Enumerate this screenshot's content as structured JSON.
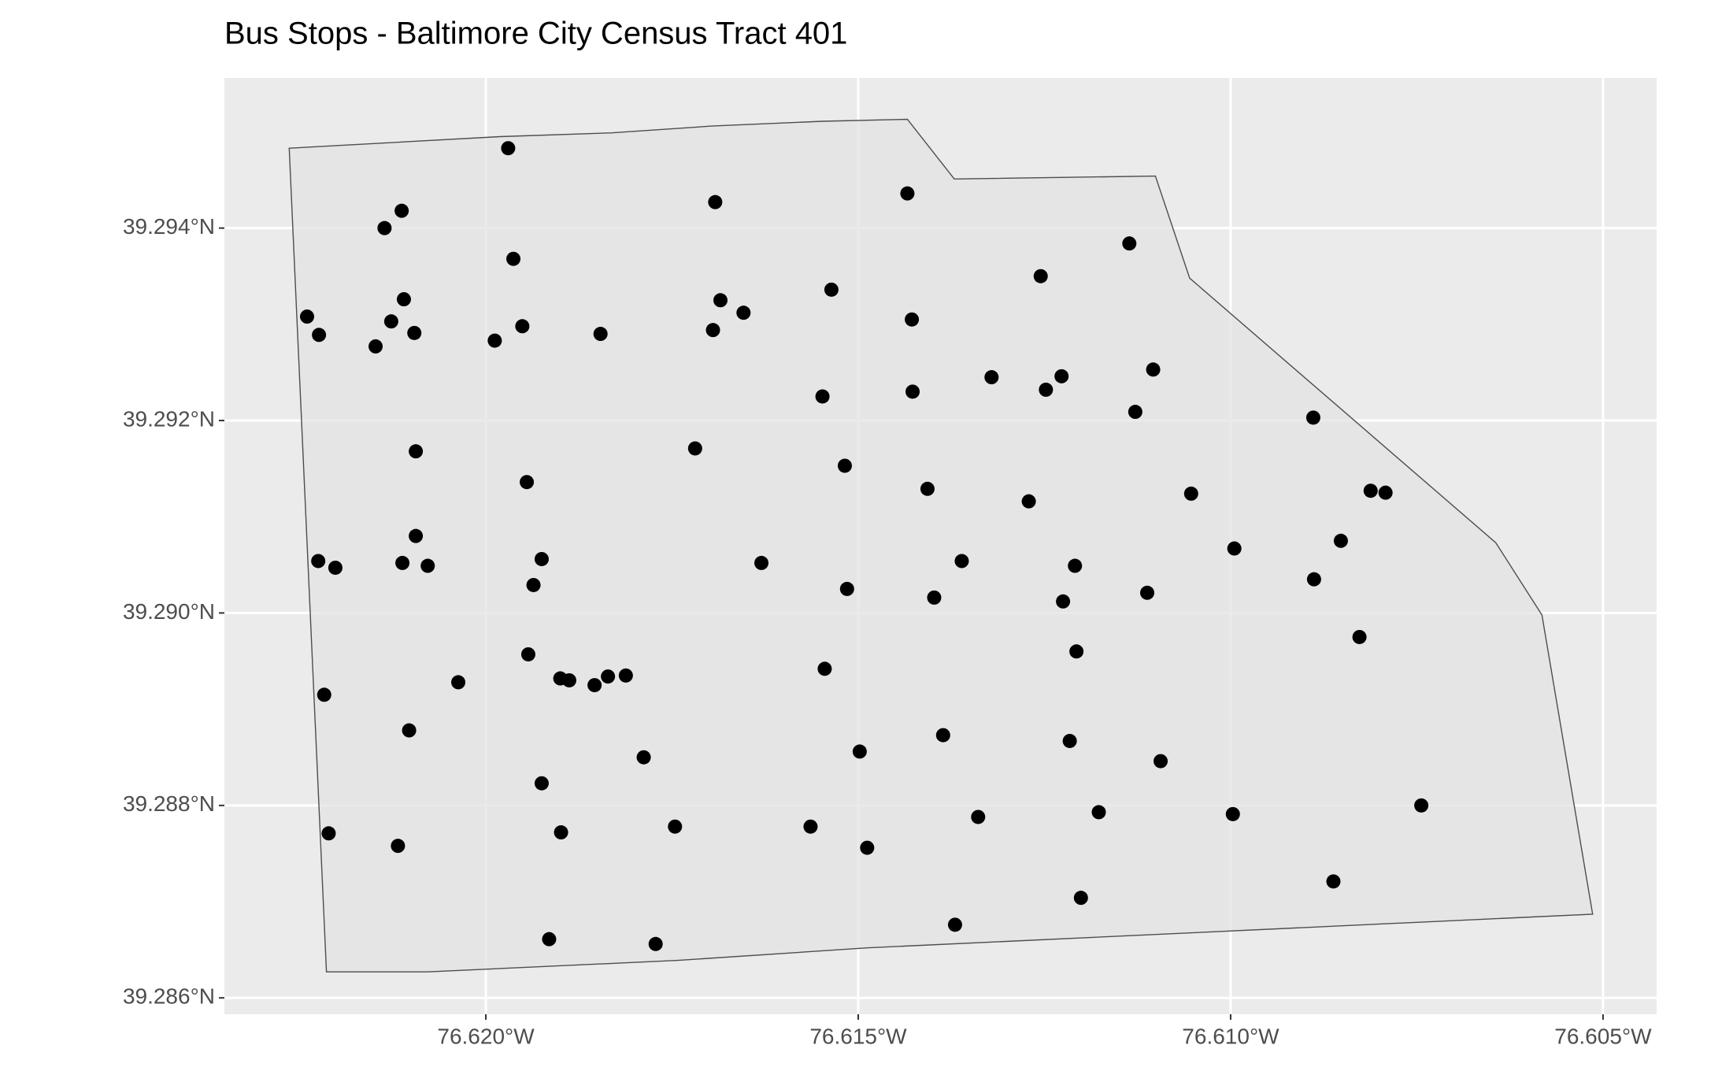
{
  "chart_data": {
    "type": "scatter",
    "title": "Bus Stops - Baltimore City Census Tract 401",
    "x": [
      -76.6197,
      -76.62113,
      -76.62136,
      -76.61692,
      -76.61434,
      -76.61136,
      -76.61255,
      -76.61963,
      -76.6224,
      -76.62224,
      -76.62127,
      -76.6211,
      -76.62096,
      -76.62148,
      -76.61988,
      -76.61951,
      -76.61846,
      -76.61695,
      -76.61685,
      -76.61654,
      -76.61536,
      -76.61428,
      -76.61548,
      -76.61427,
      -76.61321,
      -76.61248,
      -76.61227,
      -76.61104,
      -76.61128,
      -76.60889,
      -76.62094,
      -76.61719,
      -76.61518,
      -76.61945,
      -76.61407,
      -76.61271,
      -76.61053,
      -76.60812,
      -76.60792,
      -76.62094,
      -76.62225,
      -76.62202,
      -76.62112,
      -76.62078,
      -76.61925,
      -76.61936,
      -76.6163,
      -76.61515,
      -76.61361,
      -76.61398,
      -76.61209,
      -76.61225,
      -76.61112,
      -76.60995,
      -76.60888,
      -76.60852,
      -76.60827,
      -76.61943,
      -76.61207,
      -76.62037,
      -76.62217,
      -76.619,
      -76.61888,
      -76.61854,
      -76.61836,
      -76.61812,
      -76.61545,
      -76.62103,
      -76.61386,
      -76.61216,
      -76.61788,
      -76.61498,
      -76.61094,
      -76.61925,
      -76.62211,
      -76.62118,
      -76.61899,
      -76.61746,
      -76.61564,
      -76.61488,
      -76.61339,
      -76.61177,
      -76.60997,
      -76.60744,
      -76.60862,
      -76.61201,
      -76.6137,
      -76.61915,
      -76.61772
    ],
    "values": [
      39.29483,
      39.29418,
      39.294,
      39.29427,
      39.29436,
      39.29384,
      39.2935,
      39.29368,
      39.29308,
      39.29289,
      39.29303,
      39.29326,
      39.29291,
      39.29277,
      39.29283,
      39.29298,
      39.2929,
      39.29294,
      39.29325,
      39.29312,
      39.29336,
      39.29305,
      39.29225,
      39.2923,
      39.29245,
      39.29232,
      39.29246,
      39.29253,
      39.29209,
      39.29203,
      39.29168,
      39.29171,
      39.29153,
      39.29136,
      39.29129,
      39.29116,
      39.29124,
      39.29127,
      39.29125,
      39.2908,
      39.29054,
      39.29047,
      39.29052,
      39.29049,
      39.29056,
      39.29029,
      39.29052,
      39.29025,
      39.29054,
      39.29016,
      39.29049,
      39.29012,
      39.29021,
      39.29067,
      39.29035,
      39.29075,
      39.28975,
      39.28957,
      39.2896,
      39.28928,
      39.28915,
      39.28932,
      39.2893,
      39.28925,
      39.28934,
      39.28935,
      39.28942,
      39.28878,
      39.28873,
      39.28867,
      39.2885,
      39.28856,
      39.28846,
      39.28823,
      39.28771,
      39.28758,
      39.28772,
      39.28778,
      39.28778,
      39.28756,
      39.28788,
      39.28793,
      39.28791,
      39.288,
      39.28721,
      39.28704,
      39.28676,
      39.28661,
      39.28656
    ],
    "color": "#000000",
    "polygon": {
      "x": [
        -76.62264,
        -76.61981,
        -76.61831,
        -76.61697,
        -76.61548,
        -76.61434,
        -76.61371,
        -76.61101,
        -76.61055,
        -76.60644,
        -76.60582,
        -76.60514,
        -76.61488,
        -76.61742,
        -76.62078,
        -76.62214
      ],
      "y": [
        39.29483,
        39.29495,
        39.29499,
        39.29506,
        39.29511,
        39.29513,
        39.29451,
        39.29454,
        39.29348,
        39.29073,
        39.28998,
        39.28687,
        39.28652,
        39.28639,
        39.28627,
        39.28627
      ],
      "fill": "#e3e3e3",
      "stroke": "#4d4d4d"
    },
    "xlim": [
      -76.62351,
      -76.60428
    ],
    "ylim": [
      39.28583,
      39.29556
    ],
    "xticks": [
      {
        "value": -76.62,
        "label": "76.620°W"
      },
      {
        "value": -76.615,
        "label": "76.615°W"
      },
      {
        "value": -76.61,
        "label": "76.610°W"
      },
      {
        "value": -76.605,
        "label": "76.605°W"
      }
    ],
    "yticks": [
      {
        "value": 39.286,
        "label": "39.286°N"
      },
      {
        "value": 39.288,
        "label": "39.288°N"
      },
      {
        "value": 39.29,
        "label": "39.290°N"
      },
      {
        "value": 39.292,
        "label": "39.292°N"
      },
      {
        "value": 39.294,
        "label": "39.294°N"
      }
    ],
    "grid": true
  }
}
